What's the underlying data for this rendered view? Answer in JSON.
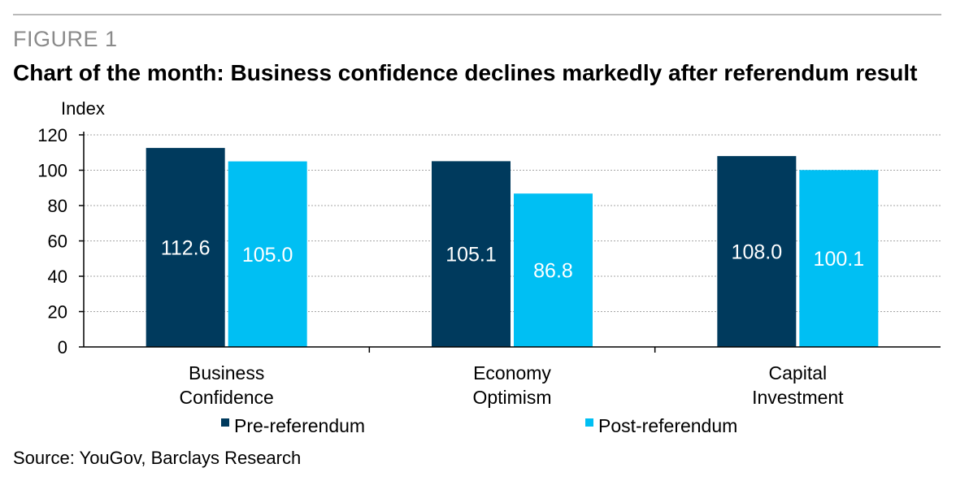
{
  "header": {
    "figure_label": "FIGURE 1",
    "title": "Chart of the month: Business confidence declines markedly after referendum result"
  },
  "chart_data": {
    "type": "bar",
    "title": "Chart of the month: Business confidence declines markedly after referendum result",
    "ylabel": "Index",
    "xlabel": "",
    "ylim": [
      0,
      120
    ],
    "yticks": [
      "0",
      "20",
      "40",
      "60",
      "80",
      "100",
      "120"
    ],
    "categories": [
      [
        "Business",
        "Confidence"
      ],
      [
        "Economy",
        "Optimism"
      ],
      [
        "Capital",
        "Investment"
      ]
    ],
    "series": [
      {
        "name": "Pre-referendum",
        "color": "#003a5d",
        "values": [
          112.6,
          105.1,
          108.0
        ],
        "labels": [
          "112.6",
          "105.1",
          "108.0"
        ]
      },
      {
        "name": "Post-referendum",
        "color": "#00bff3",
        "values": [
          105.0,
          86.8,
          100.1
        ],
        "labels": [
          "105.0",
          "86.8",
          "100.1"
        ]
      }
    ],
    "grid": true,
    "legend_position": "bottom"
  },
  "footer": {
    "source": "Source: YouGov, Barclays Research"
  }
}
